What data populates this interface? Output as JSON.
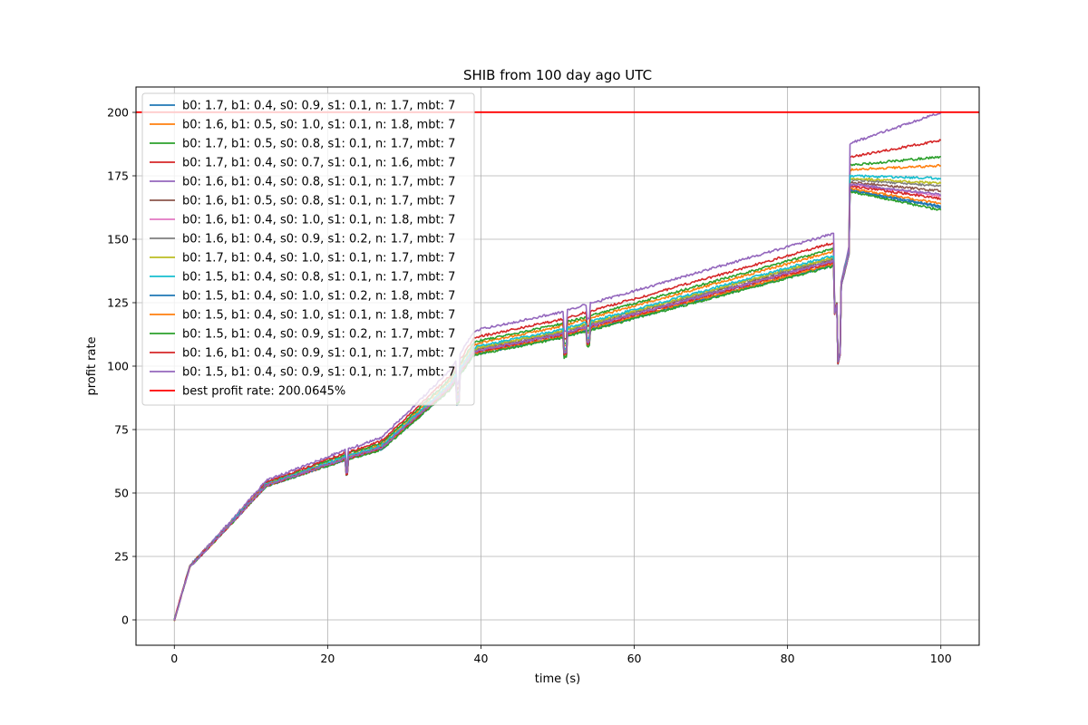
{
  "chart_data": {
    "type": "line",
    "title": "SHIB from 100 day ago UTC",
    "xlabel": "time (s)",
    "ylabel": "profit rate",
    "xlim": [
      -5,
      105
    ],
    "ylim": [
      -10,
      210
    ],
    "xticks": [
      0,
      20,
      40,
      60,
      80,
      100
    ],
    "yticks": [
      0,
      25,
      50,
      75,
      100,
      125,
      150,
      175,
      200
    ],
    "grid": true,
    "legend_position": "upper-left",
    "series": [
      {
        "name": "b0: 1.7, b1: 0.4, s0: 0.9, s1: 0.1, n: 1.7, mbt: 7",
        "color": "#1f77b4",
        "final": 162.5
      },
      {
        "name": "b0: 1.6, b1: 0.5, s0: 1.0, s1: 0.1, n: 1.8, mbt: 7",
        "color": "#ff7f0e",
        "final": 179.0
      },
      {
        "name": "b0: 1.7, b1: 0.5, s0: 0.8, s1: 0.1, n: 1.7, mbt: 7",
        "color": "#2ca02c",
        "final": 182.5
      },
      {
        "name": "b0: 1.7, b1: 0.4, s0: 0.7, s1: 0.1, n: 1.6, mbt: 7",
        "color": "#d62728",
        "final": 189.0
      },
      {
        "name": "b0: 1.6, b1: 0.4, s0: 0.8, s1: 0.1, n: 1.7, mbt: 7",
        "color": "#9467bd",
        "final": 200.0
      },
      {
        "name": "b0: 1.6, b1: 0.5, s0: 0.8, s1: 0.1, n: 1.7, mbt: 7",
        "color": "#8c564b",
        "final": 169.0
      },
      {
        "name": "b0: 1.6, b1: 0.4, s0: 1.0, s1: 0.1, n: 1.8, mbt: 7",
        "color": "#e377c2",
        "final": 167.0
      },
      {
        "name": "b0: 1.6, b1: 0.4, s0: 0.9, s1: 0.2, n: 1.7, mbt: 7",
        "color": "#7f7f7f",
        "final": 171.0
      },
      {
        "name": "b0: 1.7, b1: 0.4, s0: 1.0, s1: 0.1, n: 1.7, mbt: 7",
        "color": "#bcbd22",
        "final": 172.0
      },
      {
        "name": "b0: 1.5, b1: 0.4, s0: 0.8, s1: 0.1, n: 1.7, mbt: 7",
        "color": "#17becf",
        "final": 174.0
      },
      {
        "name": "b0: 1.5, b1: 0.4, s0: 1.0, s1: 0.2, n: 1.8, mbt: 7",
        "color": "#1f77b4",
        "final": 163.0
      },
      {
        "name": "b0: 1.5, b1: 0.4, s0: 1.0, s1: 0.1, n: 1.8, mbt: 7",
        "color": "#ff7f0e",
        "final": 164.0
      },
      {
        "name": "b0: 1.5, b1: 0.4, s0: 0.9, s1: 0.2, n: 1.7, mbt: 7",
        "color": "#2ca02c",
        "final": 161.5
      },
      {
        "name": "b0: 1.6, b1: 0.4, s0: 0.9, s1: 0.1, n: 1.7, mbt: 7",
        "color": "#d62728",
        "final": 166.0
      },
      {
        "name": "b0: 1.5, b1: 0.4, s0: 0.9, s1: 0.1, n: 1.7, mbt: 7",
        "color": "#9467bd",
        "final": 167.5
      }
    ],
    "reference_line": {
      "name": "best profit rate: 200.0645%",
      "y": 200.0645,
      "color": "#ff0000"
    }
  }
}
